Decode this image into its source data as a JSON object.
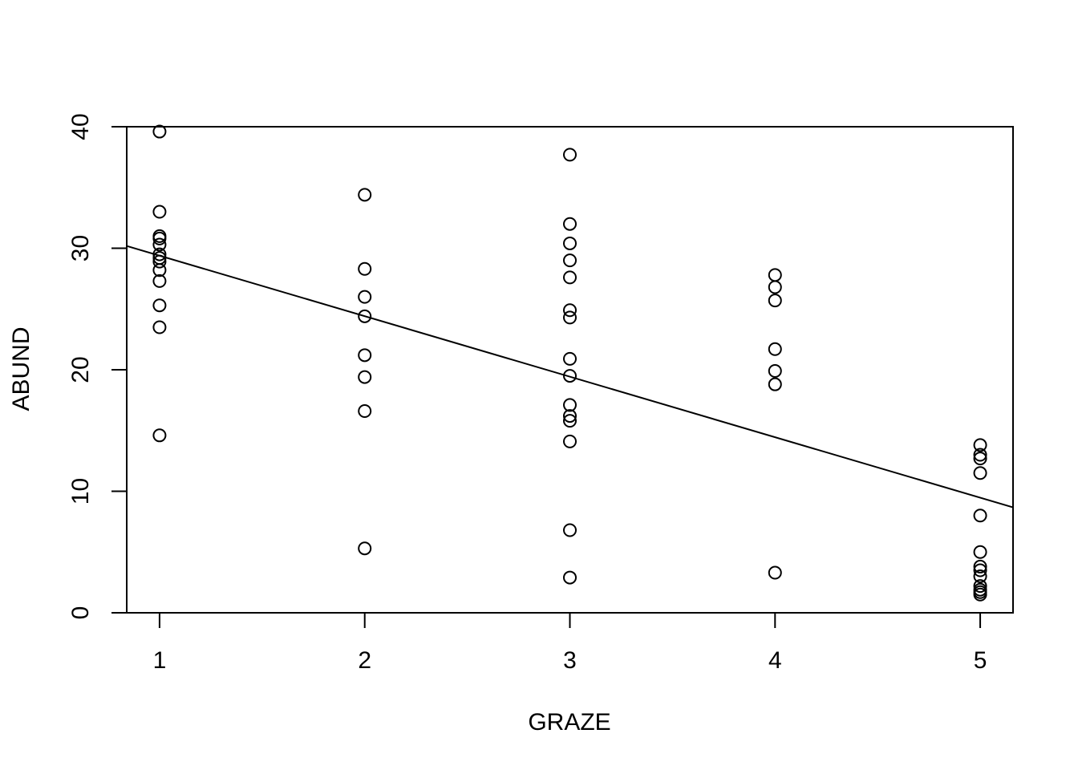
{
  "chart_data": {
    "type": "scatter",
    "title": "",
    "xlabel": "GRAZE",
    "ylabel": "ABUND",
    "xlim": [
      0.84,
      5.16
    ],
    "ylim": [
      0,
      40
    ],
    "x_ticks": [
      1,
      2,
      3,
      4,
      5
    ],
    "y_ticks": [
      0,
      10,
      20,
      30,
      40
    ],
    "grid": false,
    "legend": "none",
    "colors": {
      "points": "#000000",
      "line": "#000000",
      "background": "#ffffff"
    },
    "series": [
      {
        "points": [
          {
            "x": 1,
            "y": 39.6
          },
          {
            "x": 1,
            "y": 33.0
          },
          {
            "x": 1,
            "y": 31.0
          },
          {
            "x": 1,
            "y": 30.8
          },
          {
            "x": 1,
            "y": 30.3
          },
          {
            "x": 1,
            "y": 29.5
          },
          {
            "x": 1,
            "y": 29.2
          },
          {
            "x": 1,
            "y": 28.9
          },
          {
            "x": 1,
            "y": 28.2
          },
          {
            "x": 1,
            "y": 27.3
          },
          {
            "x": 1,
            "y": 25.3
          },
          {
            "x": 1,
            "y": 23.5
          },
          {
            "x": 1,
            "y": 14.6
          },
          {
            "x": 2,
            "y": 34.4
          },
          {
            "x": 2,
            "y": 28.3
          },
          {
            "x": 2,
            "y": 26.0
          },
          {
            "x": 2,
            "y": 24.4
          },
          {
            "x": 2,
            "y": 21.2
          },
          {
            "x": 2,
            "y": 19.4
          },
          {
            "x": 2,
            "y": 16.6
          },
          {
            "x": 2,
            "y": 5.3
          },
          {
            "x": 3,
            "y": 37.7
          },
          {
            "x": 3,
            "y": 32.0
          },
          {
            "x": 3,
            "y": 30.4
          },
          {
            "x": 3,
            "y": 29.0
          },
          {
            "x": 3,
            "y": 27.6
          },
          {
            "x": 3,
            "y": 24.9
          },
          {
            "x": 3,
            "y": 24.3
          },
          {
            "x": 3,
            "y": 20.9
          },
          {
            "x": 3,
            "y": 19.5
          },
          {
            "x": 3,
            "y": 17.1
          },
          {
            "x": 3,
            "y": 16.2
          },
          {
            "x": 3,
            "y": 15.8
          },
          {
            "x": 3,
            "y": 14.1
          },
          {
            "x": 3,
            "y": 6.8
          },
          {
            "x": 3,
            "y": 2.9
          },
          {
            "x": 4,
            "y": 27.8
          },
          {
            "x": 4,
            "y": 26.8
          },
          {
            "x": 4,
            "y": 25.7
          },
          {
            "x": 4,
            "y": 21.7
          },
          {
            "x": 4,
            "y": 19.9
          },
          {
            "x": 4,
            "y": 18.8
          },
          {
            "x": 4,
            "y": 3.3
          },
          {
            "x": 5,
            "y": 13.8
          },
          {
            "x": 5,
            "y": 13.0
          },
          {
            "x": 5,
            "y": 12.7
          },
          {
            "x": 5,
            "y": 11.5
          },
          {
            "x": 5,
            "y": 8.0
          },
          {
            "x": 5,
            "y": 5.0
          },
          {
            "x": 5,
            "y": 3.8
          },
          {
            "x": 5,
            "y": 3.5
          },
          {
            "x": 5,
            "y": 3.0
          },
          {
            "x": 5,
            "y": 2.2
          },
          {
            "x": 5,
            "y": 1.9
          },
          {
            "x": 5,
            "y": 1.7
          },
          {
            "x": 5,
            "y": 1.5
          }
        ]
      }
    ],
    "fit_line": {
      "type": "linear",
      "intercept": 34.37,
      "slope": -4.98
    }
  }
}
